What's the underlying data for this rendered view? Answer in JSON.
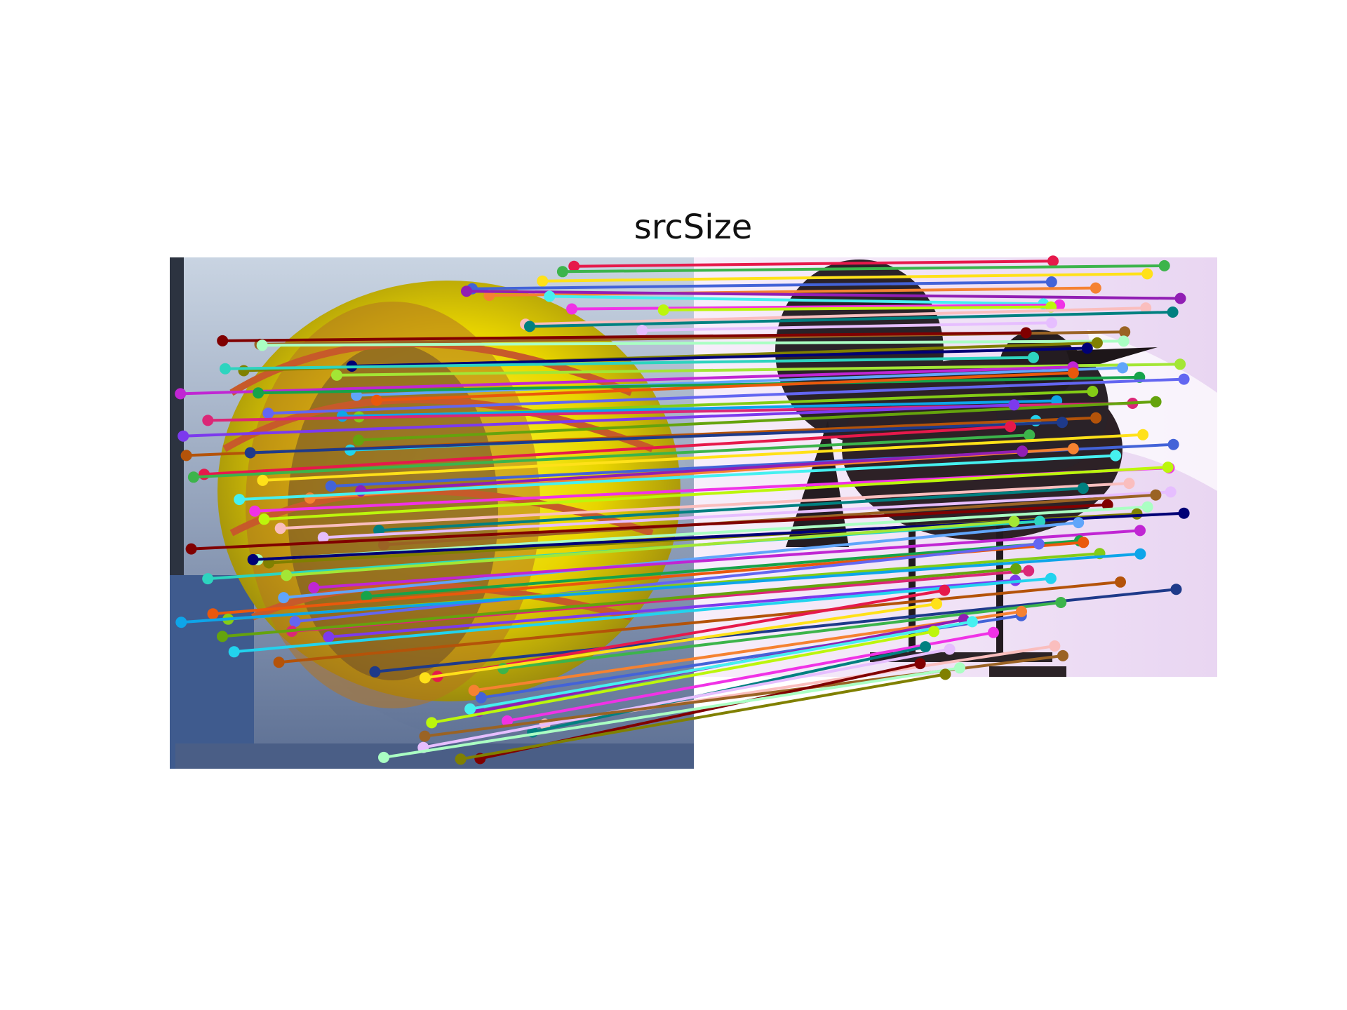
{
  "figure": {
    "title": "srcSize"
  },
  "images": {
    "left": {
      "name": "yellow-ball-photo",
      "kind": "photo of a yellow and orange ball"
    },
    "right": {
      "name": "crow-photo",
      "kind": "photo of a dark crow on a stand"
    }
  },
  "matches": {
    "count": 80,
    "colors": [
      "#e6194b",
      "#3cb44b",
      "#ffe119",
      "#4363d8",
      "#f58231",
      "#911eb4",
      "#46f0f0",
      "#f032e6",
      "#bcf60c",
      "#fabebe",
      "#008080",
      "#e6beff",
      "#9a6324",
      "#800000",
      "#aaffc3",
      "#808000",
      "#000075",
      "#2dd4bf",
      "#a3e635",
      "#60a5fa",
      "#c026d3",
      "#16a34a",
      "#ea580c",
      "#6366f1",
      "#84cc16",
      "#0ea5e9",
      "#db2777",
      "#65a30d",
      "#7c3aed",
      "#22d3ee",
      "#b45309",
      "#1e3a8a"
    ]
  }
}
